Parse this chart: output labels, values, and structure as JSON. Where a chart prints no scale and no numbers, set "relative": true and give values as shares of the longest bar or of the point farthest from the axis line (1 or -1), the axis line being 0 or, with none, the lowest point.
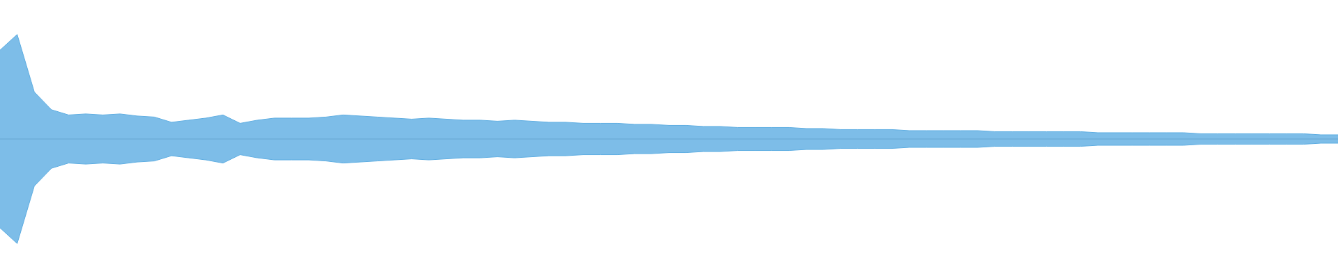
{
  "chart_data": {
    "type": "area",
    "relative": true,
    "categories": [
      null,
      null,
      null,
      null,
      null,
      null,
      null,
      null,
      null,
      null,
      null,
      null,
      null,
      null,
      null,
      null,
      null,
      null,
      null,
      null,
      null,
      null,
      null,
      null,
      null,
      null,
      null,
      null,
      null,
      null,
      null,
      null,
      null,
      null,
      null,
      null,
      null,
      null,
      null,
      null,
      null,
      null,
      null,
      null,
      null,
      null,
      null,
      null,
      null,
      null,
      null,
      null,
      null,
      null,
      null,
      null,
      null,
      null,
      null,
      null,
      null,
      null,
      null,
      null,
      null,
      null,
      null,
      null,
      null,
      null,
      null,
      null,
      null,
      null,
      null,
      null,
      null,
      null,
      null
    ],
    "series": [
      {
        "color": "#5dade2",
        "values": [
          0.85,
          1.0,
          0.45,
          0.28,
          0.23,
          0.24,
          0.23,
          0.24,
          0.22,
          0.21,
          0.16,
          0.18,
          0.2,
          0.23,
          0.15,
          0.18,
          0.2,
          0.2,
          0.2,
          0.21,
          0.23,
          0.22,
          0.21,
          0.2,
          0.19,
          0.2,
          0.19,
          0.18,
          0.18,
          0.17,
          0.18,
          0.17,
          0.16,
          0.16,
          0.15,
          0.15,
          0.15,
          0.14,
          0.14,
          0.13,
          0.13,
          0.12,
          0.12,
          0.11,
          0.11,
          0.11,
          0.11,
          0.1,
          0.1,
          0.09,
          0.09,
          0.09,
          0.09,
          0.08,
          0.08,
          0.08,
          0.08,
          0.08,
          0.07,
          0.07,
          0.07,
          0.07,
          0.07,
          0.07,
          0.06,
          0.06,
          0.06,
          0.06,
          0.06,
          0.06,
          0.05,
          0.05,
          0.05,
          0.05,
          0.05,
          0.05,
          0.05,
          0.04,
          0.04
        ]
      },
      {
        "color": "#5dade2",
        "values": [
          -0.85,
          -1.0,
          -0.45,
          -0.28,
          -0.23,
          -0.24,
          -0.23,
          -0.24,
          -0.22,
          -0.21,
          -0.16,
          -0.18,
          -0.2,
          -0.23,
          -0.15,
          -0.18,
          -0.2,
          -0.2,
          -0.2,
          -0.21,
          -0.23,
          -0.22,
          -0.21,
          -0.2,
          -0.19,
          -0.2,
          -0.19,
          -0.18,
          -0.18,
          -0.17,
          -0.18,
          -0.17,
          -0.16,
          -0.16,
          -0.15,
          -0.15,
          -0.15,
          -0.14,
          -0.14,
          -0.13,
          -0.13,
          -0.12,
          -0.12,
          -0.11,
          -0.11,
          -0.11,
          -0.11,
          -0.1,
          -0.1,
          -0.09,
          -0.09,
          -0.09,
          -0.09,
          -0.08,
          -0.08,
          -0.08,
          -0.08,
          -0.08,
          -0.07,
          -0.07,
          -0.07,
          -0.07,
          -0.07,
          -0.07,
          -0.06,
          -0.06,
          -0.06,
          -0.06,
          -0.06,
          -0.06,
          -0.05,
          -0.05,
          -0.05,
          -0.05,
          -0.05,
          -0.05,
          -0.05,
          -0.04,
          -0.04
        ]
      }
    ]
  }
}
